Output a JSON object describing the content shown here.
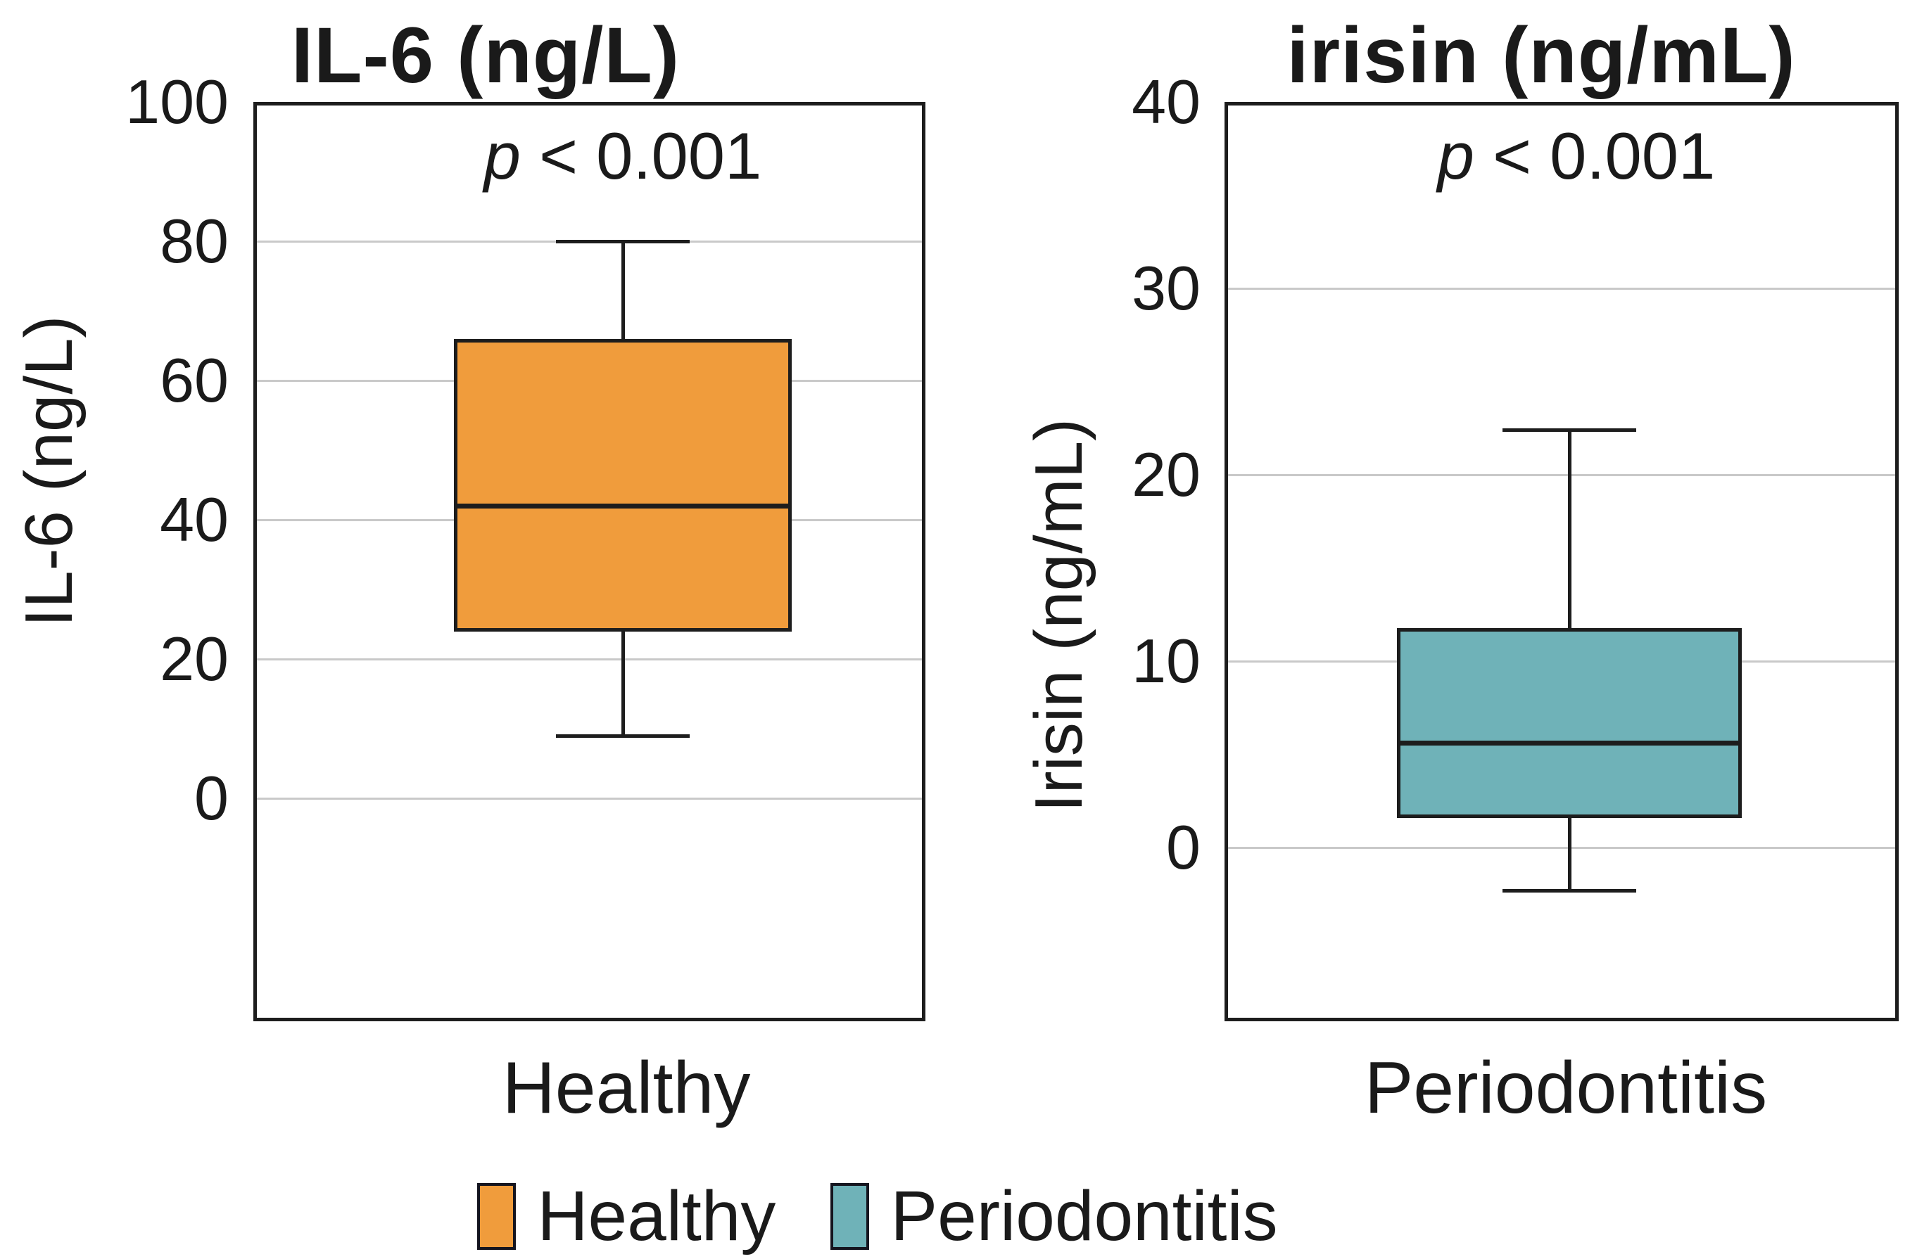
{
  "figure": {
    "background": "#ffffff",
    "frame_color": "#1d1d1d",
    "grid_color": "#c9c9c9"
  },
  "chart_data": [
    {
      "type": "box",
      "title": "IL-6 (ng/L)",
      "ylabel": "IL-6 (ng/L)",
      "xlabel": "Healthy",
      "annotation_p": "p",
      "annotation_rest": " < 0.001",
      "categories": [
        "Healthy"
      ],
      "yticks": [
        0,
        20,
        40,
        60,
        80,
        100
      ],
      "ylim": [
        -32,
        100
      ],
      "grid": true,
      "series": [
        {
          "name": "Healthy",
          "whisker_low": 9,
          "q1": 24,
          "median": 42,
          "q3": 66,
          "whisker_high": 80,
          "color": "#F09C3C"
        }
      ]
    },
    {
      "type": "box",
      "title": "irisin (ng/mL)",
      "ylabel": "Irisin (ng/mL)",
      "xlabel": "Periodontitis",
      "annotation_p": "p",
      "annotation_rest": " < 0.001",
      "categories": [
        "Periodontitis"
      ],
      "yticks": [
        0,
        10,
        20,
        30,
        40
      ],
      "ylim": [
        -9.3,
        40
      ],
      "grid": true,
      "series": [
        {
          "name": "Periodontitis",
          "whisker_low": -2.3,
          "q1": 1.6,
          "median": 5.6,
          "q3": 11.8,
          "whisker_high": 22.4,
          "color": "#6FB2B8"
        }
      ]
    }
  ],
  "legend": {
    "items": [
      {
        "label": "Healthy",
        "color": "#F09C3C"
      },
      {
        "label": "Periodontitis",
        "color": "#6FB2B8"
      }
    ]
  }
}
